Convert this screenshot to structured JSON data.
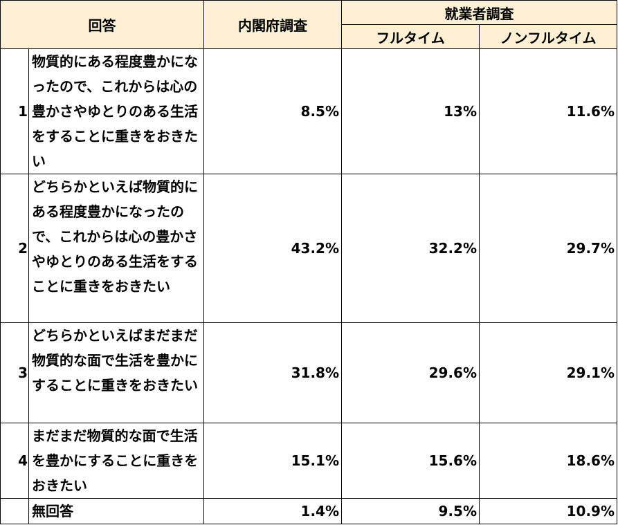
{
  "header": {
    "answer": "回答",
    "cabinet": "内閣府調査",
    "worker": "就業者調査",
    "fulltime": "フルタイム",
    "nonfulltime": "ノンフルタイム"
  },
  "table": {
    "rows": [
      {
        "no": "1",
        "answer": "物質的にある程度豊かになったので、これからは心の豊かさやゆとりのある生活をすることに重きをおきたい",
        "cabinet": "8.5%",
        "fulltime": "13%",
        "nonfulltime": "11.6%"
      },
      {
        "no": "2",
        "answer": "どちらかといえば物質的にある程度豊かになったので、これからは心の豊かさやゆとりのある生活をすることに重きをおきたい",
        "cabinet": "43.2%",
        "fulltime": "32.2%",
        "nonfulltime": "29.7%"
      },
      {
        "no": "3",
        "answer": "どちらかといえばまだまだ物質的な面で生活を豊かにすることに重きをおきたい",
        "cabinet": "31.8%",
        "fulltime": "29.6%",
        "nonfulltime": "29.1%"
      },
      {
        "no": "4",
        "answer": "まだまだ物質的な面で生活を豊かにすることに重きをおきたい",
        "cabinet": "15.1%",
        "fulltime": "15.6%",
        "nonfulltime": "18.6%"
      },
      {
        "answer": "無回答",
        "cabinet": "1.4%",
        "fulltime": "9.5%",
        "nonfulltime": "10.9%"
      }
    ]
  }
}
